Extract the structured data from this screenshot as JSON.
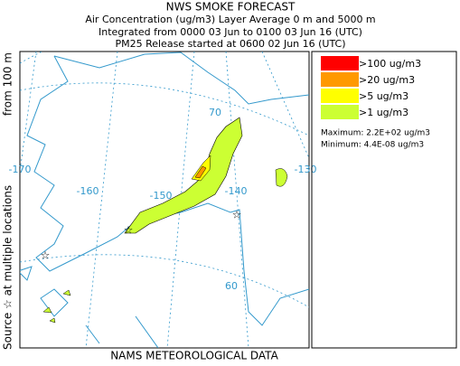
{
  "header": {
    "title": "NWS SMOKE FORECAST",
    "lines": [
      "Air Concentration (ug/m3) Layer Average    0 m and  5000 m",
      "Integrated from 0000 03 Jun to 0100 03 Jun 16 (UTC)",
      "PM25 Release started at 0600 02 Jun 16 (UTC)"
    ]
  },
  "side_label": {
    "source": "Source ☆ at multiple locations",
    "height": "from   100 m"
  },
  "map": {
    "labels": [
      "70",
      "-170",
      "-160",
      "-150",
      "-140",
      "-130",
      "60"
    ]
  },
  "legend": {
    "items": [
      {
        "label": ">100 ug/m3",
        "color": "#ff0000"
      },
      {
        "label": ">20 ug/m3",
        "color": "#ff9900"
      },
      {
        "label": ">5 ug/m3",
        "color": "#ffff00"
      },
      {
        "label": ">1 ug/m3",
        "color": "#ccff33"
      }
    ],
    "maximum": "Maximum: 2.2E+02 ug/m3",
    "minimum": "Minimum: 4.4E-08 ug/m3"
  },
  "footer": "NAMS METEOROLOGICAL DATA"
}
